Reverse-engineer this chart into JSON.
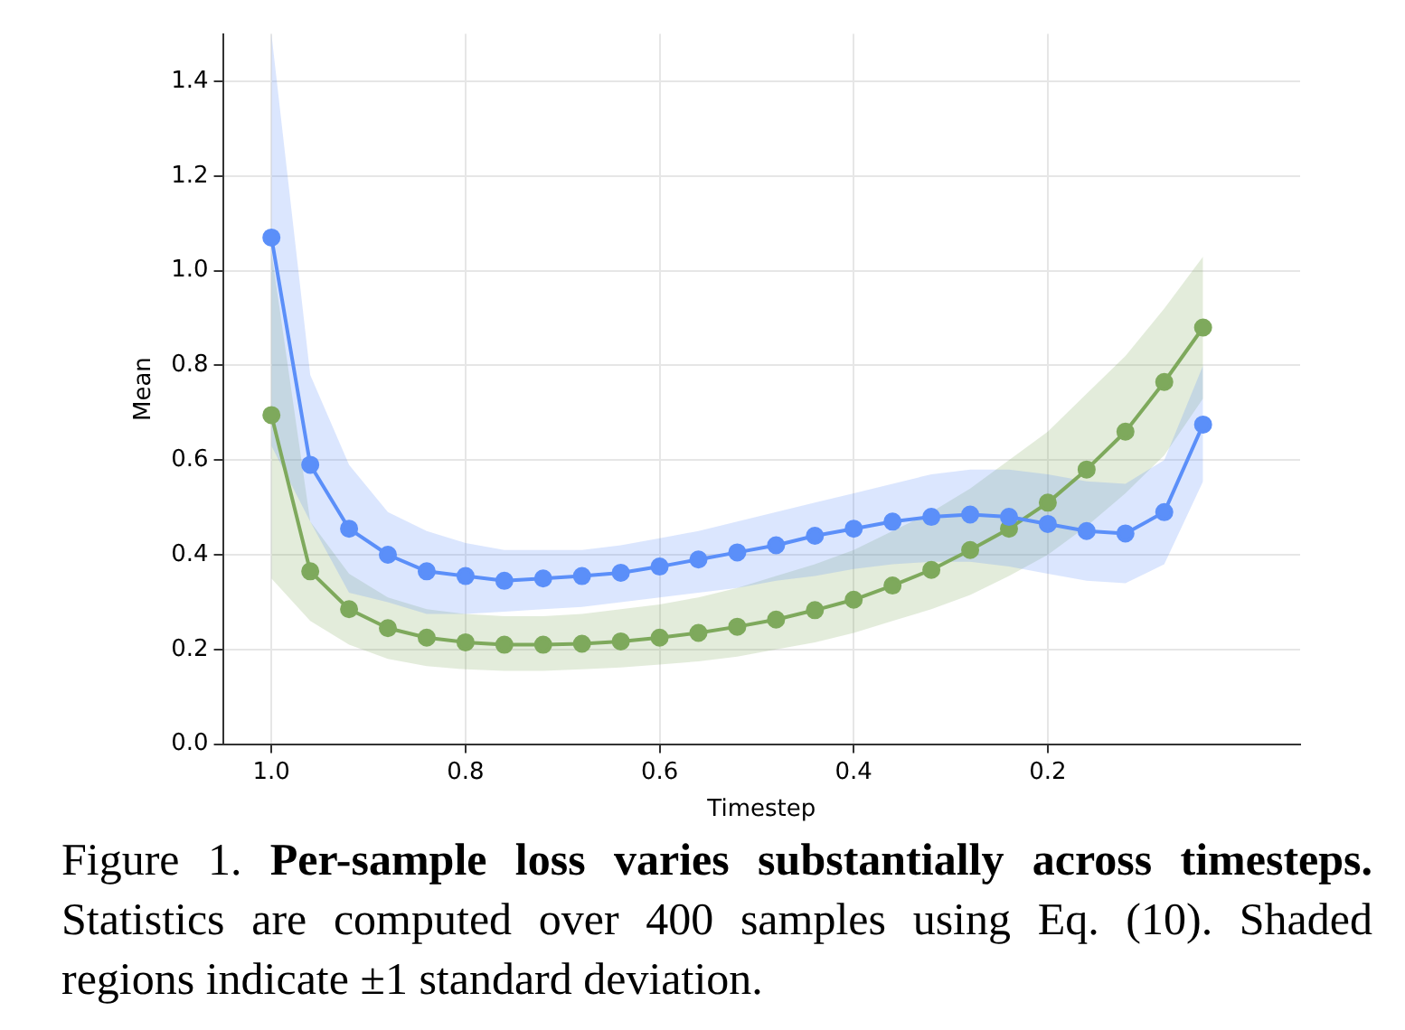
{
  "chart_data": {
    "type": "line",
    "title": "Per-sample loss varies substantially across timesteps.",
    "annotations": [
      "Figure 1.",
      "Statistics are computed over 400 samples using Eq. (10). Shaded regions indicate ±1 standard deviation."
    ],
    "xlabel": "Timestep",
    "ylabel": "Mean",
    "x": [
      1.0,
      0.96,
      0.92,
      0.88,
      0.84,
      0.8,
      0.76,
      0.72,
      0.68,
      0.64,
      0.6,
      0.56,
      0.52,
      0.48,
      0.44,
      0.4,
      0.36,
      0.32,
      0.28,
      0.24,
      0.2,
      0.16,
      0.12,
      0.08,
      0.04
    ],
    "series": [
      {
        "color": "#5b8ff9",
        "values": [
          1.07,
          0.59,
          0.455,
          0.4,
          0.365,
          0.355,
          0.345,
          0.35,
          0.355,
          0.362,
          0.375,
          0.39,
          0.405,
          0.42,
          0.44,
          0.455,
          0.47,
          0.48,
          0.485,
          0.48,
          0.465,
          0.45,
          0.445,
          0.49,
          0.675
        ],
        "upper": [
          1.5,
          0.78,
          0.59,
          0.49,
          0.45,
          0.425,
          0.41,
          0.41,
          0.41,
          0.42,
          0.435,
          0.45,
          0.47,
          0.49,
          0.51,
          0.53,
          0.55,
          0.57,
          0.58,
          0.58,
          0.57,
          0.555,
          0.55,
          0.6,
          0.8
        ],
        "lower": [
          0.63,
          0.47,
          0.32,
          0.3,
          0.275,
          0.275,
          0.28,
          0.285,
          0.29,
          0.3,
          0.31,
          0.32,
          0.33,
          0.345,
          0.355,
          0.37,
          0.38,
          0.385,
          0.385,
          0.375,
          0.36,
          0.345,
          0.34,
          0.38,
          0.555
        ]
      },
      {
        "color": "#7ea95c",
        "values": [
          0.695,
          0.365,
          0.285,
          0.245,
          0.225,
          0.215,
          0.21,
          0.21,
          0.212,
          0.217,
          0.225,
          0.235,
          0.248,
          0.263,
          0.283,
          0.305,
          0.335,
          0.368,
          0.41,
          0.455,
          0.51,
          0.58,
          0.66,
          0.765,
          0.88
        ],
        "upper": [
          1.04,
          0.47,
          0.36,
          0.31,
          0.285,
          0.275,
          0.27,
          0.27,
          0.275,
          0.285,
          0.295,
          0.31,
          0.33,
          0.355,
          0.38,
          0.41,
          0.45,
          0.49,
          0.54,
          0.6,
          0.66,
          0.74,
          0.82,
          0.92,
          1.03
        ],
        "lower": [
          0.35,
          0.26,
          0.21,
          0.18,
          0.165,
          0.158,
          0.155,
          0.155,
          0.158,
          0.162,
          0.168,
          0.175,
          0.185,
          0.2,
          0.215,
          0.235,
          0.26,
          0.285,
          0.315,
          0.355,
          0.4,
          0.46,
          0.53,
          0.61,
          0.73
        ]
      }
    ],
    "xlim": [
      1.05,
      -0.06
    ],
    "xticks": [
      {
        "value": 1.0,
        "label": "1.0"
      },
      {
        "value": 0.8,
        "label": "0.8"
      },
      {
        "value": 0.6,
        "label": "0.6"
      },
      {
        "value": 0.4,
        "label": "0.4"
      },
      {
        "value": 0.2,
        "label": "0.2"
      }
    ],
    "ylim": [
      0,
      1.5
    ],
    "yticks": [
      {
        "value": 0,
        "label": "0.0"
      },
      {
        "value": 0.2,
        "label": "0.2"
      },
      {
        "value": 0.4,
        "label": "0.4"
      },
      {
        "value": 0.6,
        "label": "0.6"
      },
      {
        "value": 0.8,
        "label": "0.8"
      },
      {
        "value": 1.0,
        "label": "1.0"
      },
      {
        "value": 1.2,
        "label": "1.2"
      },
      {
        "value": 1.4,
        "label": "1.4"
      }
    ],
    "grid": true,
    "marker": "circle",
    "line_style": "solid"
  }
}
